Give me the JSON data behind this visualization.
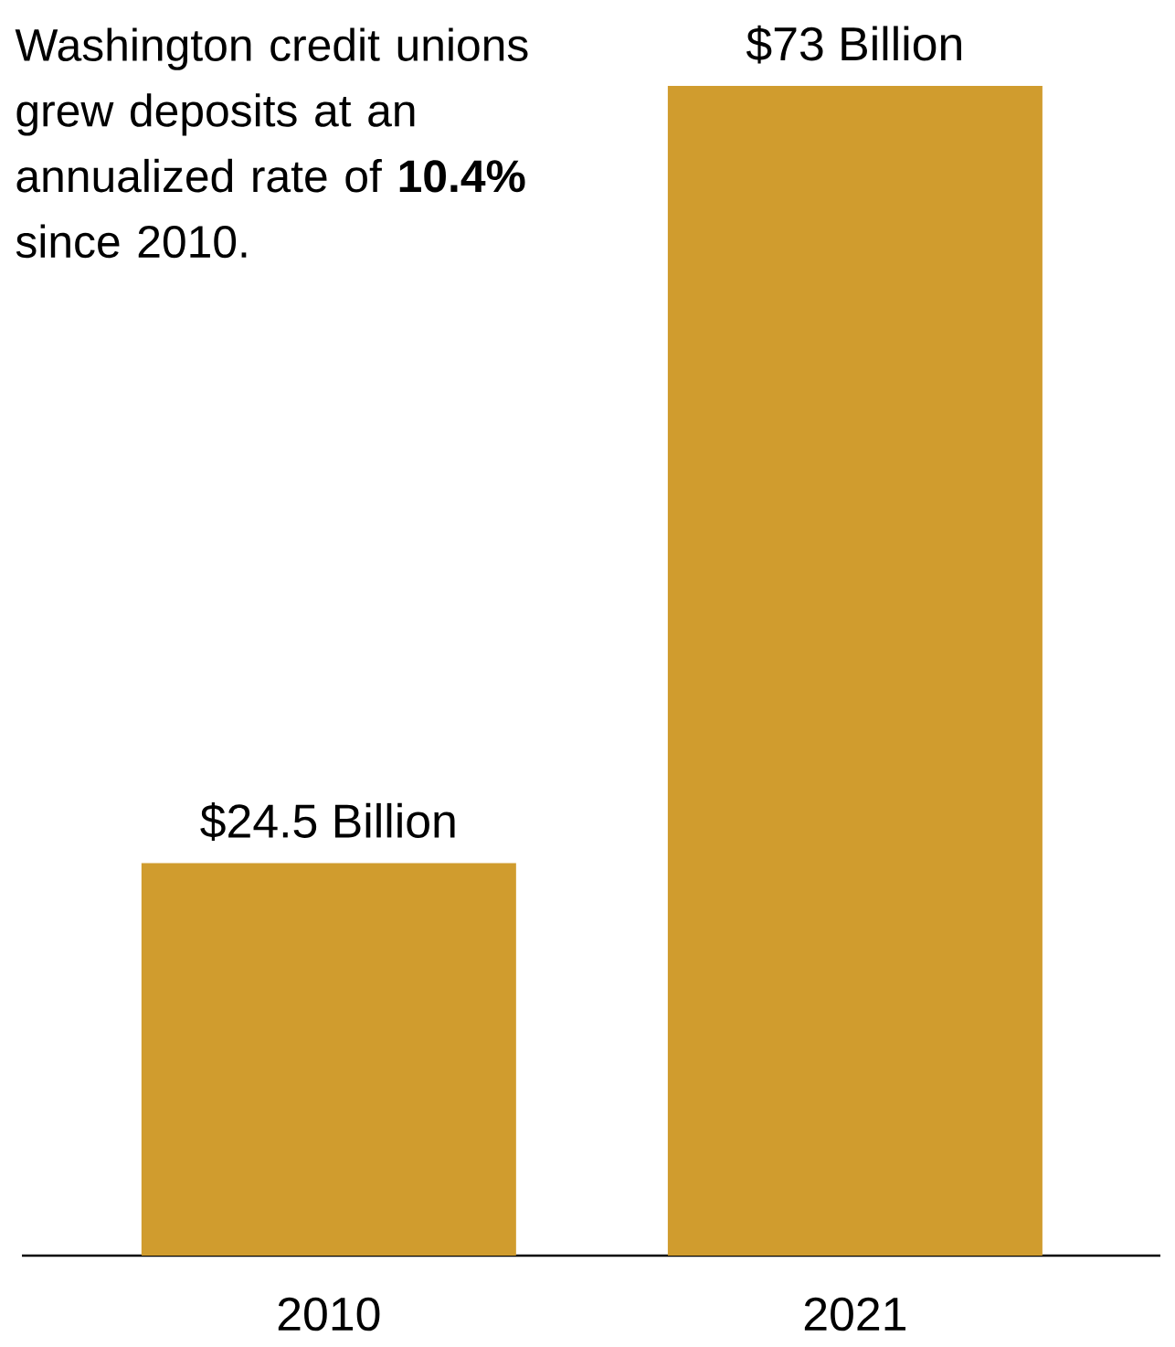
{
  "chart_data": {
    "type": "bar",
    "categories": [
      "2010",
      "2021"
    ],
    "values": [
      24.5,
      73
    ],
    "value_labels": [
      "$24.5 Billion",
      "$73 Billion"
    ],
    "color": "#d09c2e",
    "annotations": [
      "Washington credit unions grew deposits at an annualized rate of **10.4%** since 2010."
    ]
  }
}
